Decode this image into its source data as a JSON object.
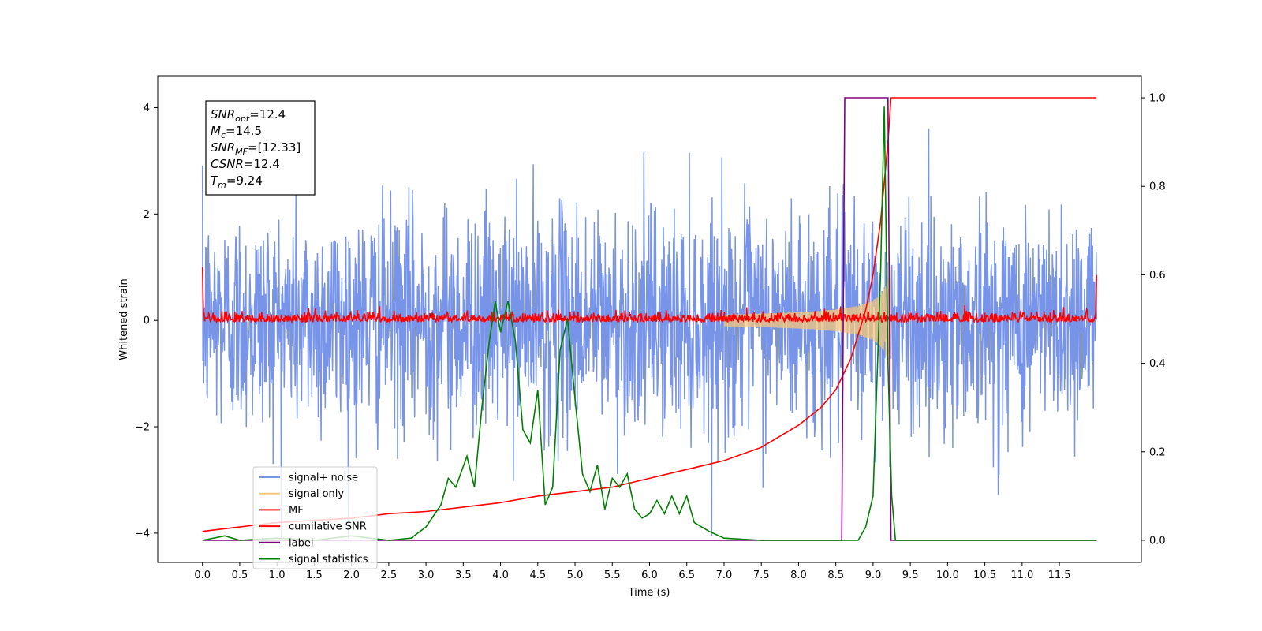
{
  "chart_data": {
    "type": "line",
    "xlabel": "Time (s)",
    "ylabel_left": "Whitened strain",
    "ylabel_right": "",
    "xlim": [
      -0.6,
      12.6
    ],
    "ylim_left": [
      -4.55,
      4.6
    ],
    "ylim_right": [
      -0.05,
      1.05
    ],
    "x_ticks": [
      "0.0",
      "0.5",
      "1.0",
      "1.5",
      "2.0",
      "2.5",
      "3.0",
      "3.5",
      "4.0",
      "4.5",
      "5.0",
      "5.5",
      "6.0",
      "6.5",
      "7.0",
      "7.5",
      "8.0",
      "8.5",
      "9.0",
      "9.5",
      "10.0",
      "10.5",
      "11.0",
      "11.5"
    ],
    "y_ticks_left": [
      "4",
      "2",
      "0",
      "−2",
      "−4"
    ],
    "y_ticks_right": [
      "1.0",
      "0.8",
      "0.6",
      "0.4",
      "0.2",
      "0.0"
    ],
    "annotation": [
      {
        "sym": "SNR",
        "sub": "opt",
        "val": "=12.4"
      },
      {
        "sym": "M",
        "sub": "c",
        "val": "=14.5"
      },
      {
        "sym": "SNR",
        "sub": "MF",
        "val": "=[12.33]"
      },
      {
        "sym": "CSNR",
        "sub": "",
        "val": "=12.4"
      },
      {
        "sym": "T",
        "sub": "m",
        "val": "=9.24"
      }
    ],
    "legend_position": "lower-left",
    "series": [
      {
        "name": "signal+ noise",
        "color": "#7794e8",
        "axis": "left",
        "kind": "noise",
        "sigma": 1.0,
        "x_range": [
          0,
          12
        ]
      },
      {
        "name": "signal only",
        "color": "#f5c77a",
        "axis": "left",
        "kind": "chirp",
        "merger_time": 9.24,
        "peak_amplitude": 1.1
      },
      {
        "name": "MF",
        "color": "#ff0000",
        "axis": "left",
        "kind": "noise",
        "sigma": 0.07,
        "x_range": [
          0,
          12
        ]
      },
      {
        "name": "cumilative SNR",
        "color": "#ff0000",
        "axis": "right",
        "x": [
          0,
          0.5,
          1,
          1.5,
          2,
          2.5,
          3,
          3.5,
          4,
          4.5,
          5,
          5.5,
          6,
          6.5,
          7,
          7.5,
          8,
          8.3,
          8.5,
          8.7,
          8.9,
          9.0,
          9.1,
          9.2,
          9.24,
          9.3,
          10,
          11,
          12
        ],
        "y": [
          0.02,
          0.03,
          0.04,
          0.045,
          0.05,
          0.06,
          0.065,
          0.075,
          0.085,
          0.1,
          0.11,
          0.12,
          0.14,
          0.16,
          0.18,
          0.21,
          0.26,
          0.3,
          0.34,
          0.41,
          0.52,
          0.6,
          0.72,
          0.9,
          1.0,
          1.0,
          1.0,
          1.0,
          1.0
        ]
      },
      {
        "name": "label",
        "color": "#800080",
        "axis": "right",
        "x": [
          0,
          8.58,
          8.62,
          9.2,
          9.24,
          12
        ],
        "y": [
          0,
          0,
          1,
          1,
          0,
          0
        ]
      },
      {
        "name": "signal statistics",
        "color": "#008000",
        "axis": "right",
        "x": [
          0,
          0.3,
          0.5,
          1,
          1.5,
          2,
          2.5,
          2.8,
          3.0,
          3.2,
          3.3,
          3.4,
          3.55,
          3.65,
          3.75,
          3.85,
          3.93,
          4.0,
          4.1,
          4.2,
          4.3,
          4.4,
          4.5,
          4.6,
          4.7,
          4.8,
          4.9,
          5.0,
          5.1,
          5.2,
          5.3,
          5.4,
          5.5,
          5.6,
          5.7,
          5.8,
          5.9,
          6.0,
          6.1,
          6.2,
          6.3,
          6.4,
          6.5,
          6.6,
          6.8,
          7.0,
          7.5,
          8.0,
          8.5,
          8.8,
          8.9,
          9.0,
          9.1,
          9.15,
          9.2,
          9.25,
          9.3,
          12
        ],
        "y": [
          0,
          0.01,
          0,
          0.005,
          0,
          0.01,
          0,
          0.005,
          0.03,
          0.08,
          0.14,
          0.12,
          0.19,
          0.12,
          0.3,
          0.45,
          0.54,
          0.47,
          0.54,
          0.45,
          0.25,
          0.22,
          0.34,
          0.08,
          0.12,
          0.43,
          0.5,
          0.32,
          0.15,
          0.11,
          0.17,
          0.07,
          0.14,
          0.12,
          0.15,
          0.07,
          0.05,
          0.06,
          0.09,
          0.06,
          0.1,
          0.06,
          0.1,
          0.04,
          0.02,
          0.005,
          0,
          0,
          0,
          0,
          0.03,
          0.1,
          0.6,
          0.98,
          0.4,
          0.1,
          0,
          0
        ]
      }
    ]
  }
}
